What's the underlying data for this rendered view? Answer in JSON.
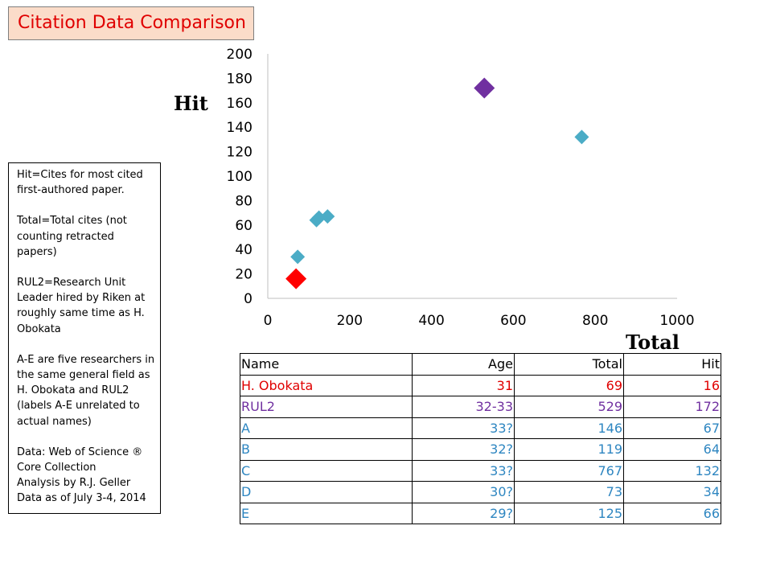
{
  "title": "Citation Data Comparison",
  "notes": [
    "Hit=Cites for most cited first-authored paper.",
    "Total=Total cites (not counting retracted papers)",
    "RUL2=Research Unit Leader hired by Riken at roughly same time as H. Obokata",
    "A-E are five researchers in the same general field as H. Obokata and RUL2 (labels A-E unrelated to actual names)",
    "Data: Web of Science ® Core Collection\nAnalysis by R.J. Geller\nData as of July 3-4, 2014"
  ],
  "chart_data": {
    "type": "scatter",
    "xlabel": "Total",
    "ylabel": "Hit",
    "xlim": [
      0,
      1000
    ],
    "ylim": [
      0,
      200
    ],
    "xticks": [
      0,
      200,
      400,
      600,
      800,
      1000
    ],
    "yticks": [
      0,
      20,
      40,
      60,
      80,
      100,
      120,
      140,
      160,
      180,
      200
    ],
    "grid": false,
    "points": [
      {
        "x": 146,
        "y": 67,
        "color": "#4bacc6",
        "size": "small"
      },
      {
        "x": 119,
        "y": 64,
        "color": "#4bacc6",
        "size": "small"
      },
      {
        "x": 767,
        "y": 132,
        "color": "#4bacc6",
        "size": "small"
      },
      {
        "x": 73,
        "y": 34,
        "color": "#4bacc6",
        "size": "small"
      },
      {
        "x": 125,
        "y": 66,
        "color": "#4bacc6",
        "size": "small"
      },
      {
        "x": 529,
        "y": 172,
        "color": "#7030a0",
        "size": "large"
      },
      {
        "x": 69,
        "y": 16,
        "color": "#ff0000",
        "size": "large"
      }
    ]
  },
  "table": {
    "headers": [
      "Name",
      "Age",
      "Total",
      "Hit"
    ],
    "rows": [
      {
        "cells": [
          "H. Obokata",
          "31",
          "69",
          "16"
        ],
        "color": "#e00000"
      },
      {
        "cells": [
          "RUL2",
          "32-33",
          "529",
          "172"
        ],
        "color": "#7030a0"
      },
      {
        "cells": [
          "A",
          "33?",
          "146",
          "67"
        ],
        "color": "#2e86c1"
      },
      {
        "cells": [
          "B",
          "32?",
          "119",
          "64"
        ],
        "color": "#2e86c1"
      },
      {
        "cells": [
          "C",
          "33?",
          "767",
          "132"
        ],
        "color": "#2e86c1"
      },
      {
        "cells": [
          "D",
          "30?",
          "73",
          "34"
        ],
        "color": "#2e86c1"
      },
      {
        "cells": [
          "E",
          "29?",
          "125",
          "66"
        ],
        "color": "#2e86c1"
      }
    ]
  }
}
